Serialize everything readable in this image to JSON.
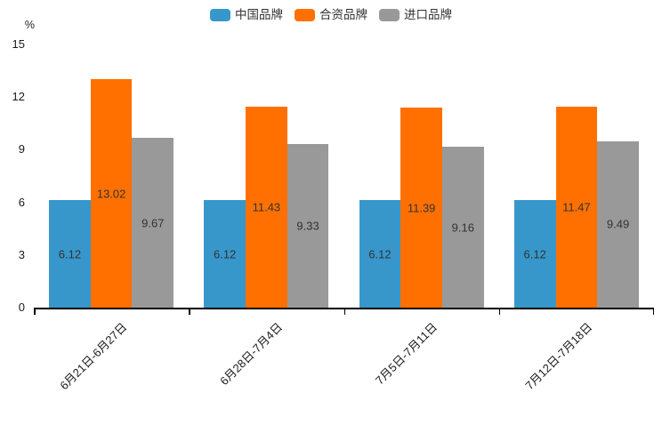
{
  "chart_data": {
    "type": "bar",
    "title": "",
    "xlabel": "",
    "ylabel": "%",
    "categories": [
      "6月21日-6月27日",
      "6月28日-7月4日",
      "7月5日-7月11日",
      "7月12日-7月18日"
    ],
    "series": [
      {
        "name": "中国品牌",
        "color": "#3797CB",
        "values": [
          6.12,
          6.12,
          6.12,
          6.12
        ]
      },
      {
        "name": "合资品牌",
        "color": "#FF7000",
        "values": [
          13.02,
          11.43,
          11.39,
          11.47
        ]
      },
      {
        "name": "进口品牌",
        "color": "#999999",
        "values": [
          9.67,
          9.33,
          9.16,
          9.49
        ]
      }
    ],
    "ylim": [
      0,
      15
    ],
    "yticks": [
      0,
      3,
      6,
      9,
      12,
      15
    ],
    "grid": false,
    "legend_position": "top",
    "value_label_position": "inside-middle",
    "value_label_color": "#333333",
    "axis_color": "#000000"
  }
}
